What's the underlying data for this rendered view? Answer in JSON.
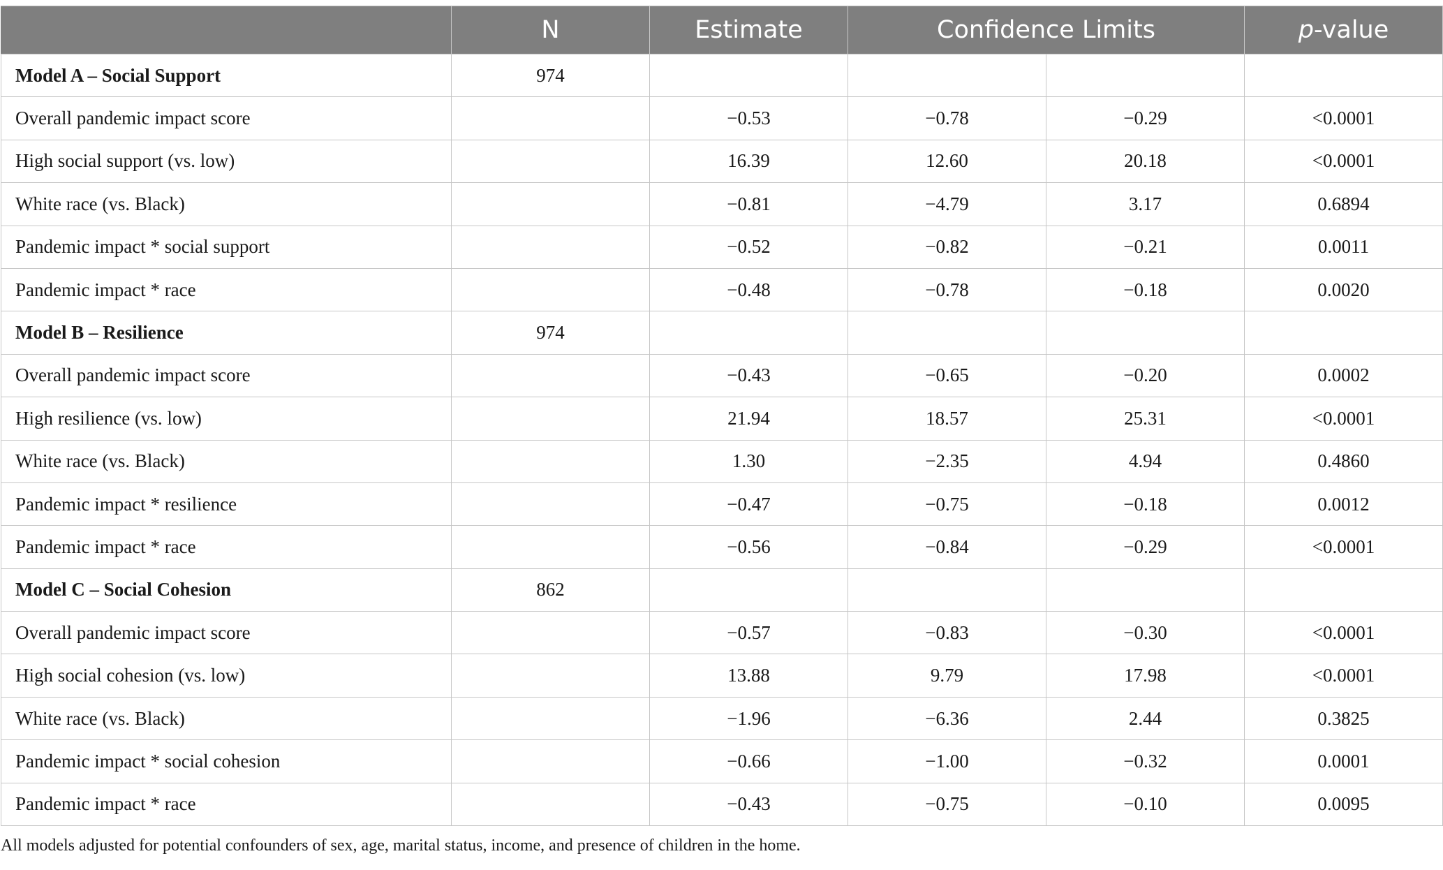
{
  "table": {
    "headers": {
      "label": "",
      "n": "N",
      "estimate": "Estimate",
      "confidence_limits": "Confidence Limits",
      "p_value_italic": "p",
      "p_value_rest": "-value"
    },
    "rows": [
      {
        "kind": "model",
        "label": "Model A – Social Support",
        "n": "974",
        "estimate": "",
        "lower": "",
        "upper": "",
        "p": ""
      },
      {
        "kind": "row",
        "label": "Overall pandemic impact score",
        "n": "",
        "estimate": "−0.53",
        "lower": "−0.78",
        "upper": "−0.29",
        "p": "<0.0001"
      },
      {
        "kind": "row",
        "label": "High social support (vs. low)",
        "n": "",
        "estimate": "16.39",
        "lower": "12.60",
        "upper": "20.18",
        "p": "<0.0001"
      },
      {
        "kind": "row",
        "label": "White race (vs. Black)",
        "n": "",
        "estimate": "−0.81",
        "lower": "−4.79",
        "upper": "3.17",
        "p": "0.6894"
      },
      {
        "kind": "row",
        "label": "Pandemic impact * social support",
        "n": "",
        "estimate": "−0.52",
        "lower": "−0.82",
        "upper": "−0.21",
        "p": "0.0011"
      },
      {
        "kind": "row",
        "label": "Pandemic impact * race",
        "n": "",
        "estimate": "−0.48",
        "lower": "−0.78",
        "upper": "−0.18",
        "p": "0.0020"
      },
      {
        "kind": "model",
        "label": "Model B – Resilience",
        "n": "974",
        "estimate": "",
        "lower": "",
        "upper": "",
        "p": ""
      },
      {
        "kind": "row",
        "label": "Overall pandemic impact score",
        "n": "",
        "estimate": "−0.43",
        "lower": "−0.65",
        "upper": "−0.20",
        "p": "0.0002"
      },
      {
        "kind": "row",
        "label": "High resilience (vs. low)",
        "n": "",
        "estimate": "21.94",
        "lower": "18.57",
        "upper": "25.31",
        "p": "<0.0001"
      },
      {
        "kind": "row",
        "label": "White race (vs. Black)",
        "n": "",
        "estimate": "1.30",
        "lower": "−2.35",
        "upper": "4.94",
        "p": "0.4860"
      },
      {
        "kind": "row",
        "label": "Pandemic impact * resilience",
        "n": "",
        "estimate": "−0.47",
        "lower": "−0.75",
        "upper": "−0.18",
        "p": "0.0012"
      },
      {
        "kind": "row",
        "label": "Pandemic impact * race",
        "n": "",
        "estimate": "−0.56",
        "lower": "−0.84",
        "upper": "−0.29",
        "p": "<0.0001"
      },
      {
        "kind": "model",
        "label": "Model C – Social Cohesion",
        "n": "862",
        "estimate": "",
        "lower": "",
        "upper": "",
        "p": ""
      },
      {
        "kind": "row",
        "label": "Overall pandemic impact score",
        "n": "",
        "estimate": "−0.57",
        "lower": "−0.83",
        "upper": "−0.30",
        "p": "<0.0001"
      },
      {
        "kind": "row",
        "label": "High social cohesion (vs. low)",
        "n": "",
        "estimate": "13.88",
        "lower": "9.79",
        "upper": "17.98",
        "p": "<0.0001"
      },
      {
        "kind": "row",
        "label": "White race (vs. Black)",
        "n": "",
        "estimate": "−1.96",
        "lower": "−6.36",
        "upper": "2.44",
        "p": "0.3825"
      },
      {
        "kind": "row",
        "label": "Pandemic impact * social cohesion",
        "n": "",
        "estimate": "−0.66",
        "lower": "−1.00",
        "upper": "−0.32",
        "p": "0.0001"
      },
      {
        "kind": "row",
        "label": "Pandemic impact * race",
        "n": "",
        "estimate": "−0.43",
        "lower": "−0.75",
        "upper": "−0.10",
        "p": "0.0095"
      }
    ]
  },
  "footnote": "All models adjusted for potential confounders of sex, age, marital status, income, and presence of children in the home.",
  "colors": {
    "header_bg": "#7f7f7f",
    "header_text": "#ffffff",
    "grid": "#c6c6c6"
  }
}
